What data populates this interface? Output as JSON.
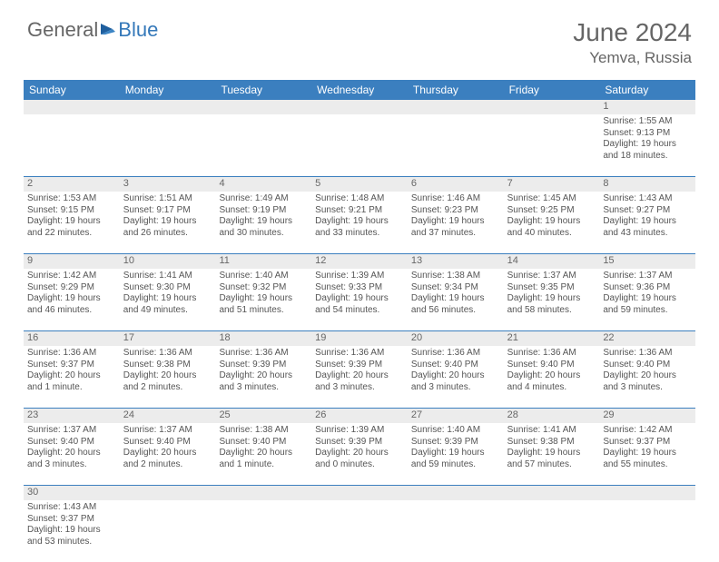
{
  "logo": {
    "text1": "General",
    "text2": "Blue"
  },
  "title": "June 2024",
  "location": "Yemva, Russia",
  "colors": {
    "header_bg": "#3b7fbf",
    "daynum_bg": "#ececec",
    "week_border": "#3b7fbf",
    "text": "#555555",
    "logo_blue": "#3478b9"
  },
  "dows": [
    "Sunday",
    "Monday",
    "Tuesday",
    "Wednesday",
    "Thursday",
    "Friday",
    "Saturday"
  ],
  "weeks": [
    {
      "nums": [
        "",
        "",
        "",
        "",
        "",
        "",
        "1"
      ],
      "days": [
        null,
        null,
        null,
        null,
        null,
        null,
        {
          "sunrise": "Sunrise: 1:55 AM",
          "sunset": "Sunset: 9:13 PM",
          "daylight": "Daylight: 19 hours and 18 minutes."
        }
      ]
    },
    {
      "nums": [
        "2",
        "3",
        "4",
        "5",
        "6",
        "7",
        "8"
      ],
      "days": [
        {
          "sunrise": "Sunrise: 1:53 AM",
          "sunset": "Sunset: 9:15 PM",
          "daylight": "Daylight: 19 hours and 22 minutes."
        },
        {
          "sunrise": "Sunrise: 1:51 AM",
          "sunset": "Sunset: 9:17 PM",
          "daylight": "Daylight: 19 hours and 26 minutes."
        },
        {
          "sunrise": "Sunrise: 1:49 AM",
          "sunset": "Sunset: 9:19 PM",
          "daylight": "Daylight: 19 hours and 30 minutes."
        },
        {
          "sunrise": "Sunrise: 1:48 AM",
          "sunset": "Sunset: 9:21 PM",
          "daylight": "Daylight: 19 hours and 33 minutes."
        },
        {
          "sunrise": "Sunrise: 1:46 AM",
          "sunset": "Sunset: 9:23 PM",
          "daylight": "Daylight: 19 hours and 37 minutes."
        },
        {
          "sunrise": "Sunrise: 1:45 AM",
          "sunset": "Sunset: 9:25 PM",
          "daylight": "Daylight: 19 hours and 40 minutes."
        },
        {
          "sunrise": "Sunrise: 1:43 AM",
          "sunset": "Sunset: 9:27 PM",
          "daylight": "Daylight: 19 hours and 43 minutes."
        }
      ]
    },
    {
      "nums": [
        "9",
        "10",
        "11",
        "12",
        "13",
        "14",
        "15"
      ],
      "days": [
        {
          "sunrise": "Sunrise: 1:42 AM",
          "sunset": "Sunset: 9:29 PM",
          "daylight": "Daylight: 19 hours and 46 minutes."
        },
        {
          "sunrise": "Sunrise: 1:41 AM",
          "sunset": "Sunset: 9:30 PM",
          "daylight": "Daylight: 19 hours and 49 minutes."
        },
        {
          "sunrise": "Sunrise: 1:40 AM",
          "sunset": "Sunset: 9:32 PM",
          "daylight": "Daylight: 19 hours and 51 minutes."
        },
        {
          "sunrise": "Sunrise: 1:39 AM",
          "sunset": "Sunset: 9:33 PM",
          "daylight": "Daylight: 19 hours and 54 minutes."
        },
        {
          "sunrise": "Sunrise: 1:38 AM",
          "sunset": "Sunset: 9:34 PM",
          "daylight": "Daylight: 19 hours and 56 minutes."
        },
        {
          "sunrise": "Sunrise: 1:37 AM",
          "sunset": "Sunset: 9:35 PM",
          "daylight": "Daylight: 19 hours and 58 minutes."
        },
        {
          "sunrise": "Sunrise: 1:37 AM",
          "sunset": "Sunset: 9:36 PM",
          "daylight": "Daylight: 19 hours and 59 minutes."
        }
      ]
    },
    {
      "nums": [
        "16",
        "17",
        "18",
        "19",
        "20",
        "21",
        "22"
      ],
      "days": [
        {
          "sunrise": "Sunrise: 1:36 AM",
          "sunset": "Sunset: 9:37 PM",
          "daylight": "Daylight: 20 hours and 1 minute."
        },
        {
          "sunrise": "Sunrise: 1:36 AM",
          "sunset": "Sunset: 9:38 PM",
          "daylight": "Daylight: 20 hours and 2 minutes."
        },
        {
          "sunrise": "Sunrise: 1:36 AM",
          "sunset": "Sunset: 9:39 PM",
          "daylight": "Daylight: 20 hours and 3 minutes."
        },
        {
          "sunrise": "Sunrise: 1:36 AM",
          "sunset": "Sunset: 9:39 PM",
          "daylight": "Daylight: 20 hours and 3 minutes."
        },
        {
          "sunrise": "Sunrise: 1:36 AM",
          "sunset": "Sunset: 9:40 PM",
          "daylight": "Daylight: 20 hours and 3 minutes."
        },
        {
          "sunrise": "Sunrise: 1:36 AM",
          "sunset": "Sunset: 9:40 PM",
          "daylight": "Daylight: 20 hours and 4 minutes."
        },
        {
          "sunrise": "Sunrise: 1:36 AM",
          "sunset": "Sunset: 9:40 PM",
          "daylight": "Daylight: 20 hours and 3 minutes."
        }
      ]
    },
    {
      "nums": [
        "23",
        "24",
        "25",
        "26",
        "27",
        "28",
        "29"
      ],
      "days": [
        {
          "sunrise": "Sunrise: 1:37 AM",
          "sunset": "Sunset: 9:40 PM",
          "daylight": "Daylight: 20 hours and 3 minutes."
        },
        {
          "sunrise": "Sunrise: 1:37 AM",
          "sunset": "Sunset: 9:40 PM",
          "daylight": "Daylight: 20 hours and 2 minutes."
        },
        {
          "sunrise": "Sunrise: 1:38 AM",
          "sunset": "Sunset: 9:40 PM",
          "daylight": "Daylight: 20 hours and 1 minute."
        },
        {
          "sunrise": "Sunrise: 1:39 AM",
          "sunset": "Sunset: 9:39 PM",
          "daylight": "Daylight: 20 hours and 0 minutes."
        },
        {
          "sunrise": "Sunrise: 1:40 AM",
          "sunset": "Sunset: 9:39 PM",
          "daylight": "Daylight: 19 hours and 59 minutes."
        },
        {
          "sunrise": "Sunrise: 1:41 AM",
          "sunset": "Sunset: 9:38 PM",
          "daylight": "Daylight: 19 hours and 57 minutes."
        },
        {
          "sunrise": "Sunrise: 1:42 AM",
          "sunset": "Sunset: 9:37 PM",
          "daylight": "Daylight: 19 hours and 55 minutes."
        }
      ]
    },
    {
      "nums": [
        "30",
        "",
        "",
        "",
        "",
        "",
        ""
      ],
      "days": [
        {
          "sunrise": "Sunrise: 1:43 AM",
          "sunset": "Sunset: 9:37 PM",
          "daylight": "Daylight: 19 hours and 53 minutes."
        },
        null,
        null,
        null,
        null,
        null,
        null
      ],
      "last": true
    }
  ]
}
